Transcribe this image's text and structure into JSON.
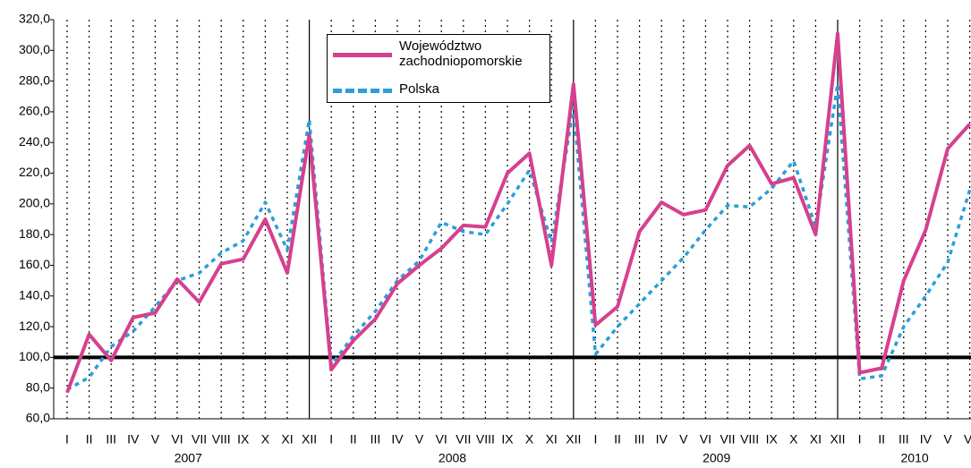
{
  "chart_data": {
    "type": "line",
    "categories": [
      "I",
      "II",
      "III",
      "IV",
      "V",
      "VI",
      "VII",
      "VIII",
      "IX",
      "X",
      "XI",
      "XII",
      "I",
      "II",
      "III",
      "IV",
      "V",
      "VI",
      "VII",
      "VIII",
      "IX",
      "X",
      "XI",
      "XII",
      "I",
      "II",
      "III",
      "IV",
      "V",
      "VI",
      "VII",
      "VIII",
      "IX",
      "X",
      "XI",
      "XII",
      "I",
      "II",
      "III",
      "IV",
      "V",
      "VI"
    ],
    "years": [
      "2007",
      "2008",
      "2009",
      "2010"
    ],
    "series": [
      {
        "name": "Województwo zachodniopomorskie",
        "color": "#d6408e",
        "style": "solid",
        "values": [
          77,
          115,
          98,
          126,
          129,
          151,
          136,
          161,
          164,
          190,
          155,
          245,
          92,
          111,
          125,
          148,
          160,
          171,
          186,
          185,
          220,
          233,
          160,
          278,
          121,
          133,
          182,
          201,
          193,
          196,
          225,
          238,
          213,
          217,
          180,
          311,
          90,
          93,
          150,
          183,
          236,
          252
        ]
      },
      {
        "name": "Polska",
        "color": "#2a9fd8",
        "style": "dotted",
        "values": [
          79,
          87,
          107,
          117,
          133,
          150,
          155,
          168,
          176,
          201,
          170,
          255,
          95,
          114,
          130,
          150,
          163,
          188,
          182,
          180,
          200,
          222,
          175,
          263,
          102,
          120,
          135,
          150,
          165,
          183,
          199,
          198,
          210,
          228,
          185,
          278,
          86,
          88,
          120,
          140,
          162,
          209
        ]
      }
    ],
    "reference_line": 100,
    "ylim": [
      60,
      320
    ],
    "yticks": [
      {
        "value": 60,
        "label": "60,0"
      },
      {
        "value": 80,
        "label": "80,0"
      },
      {
        "value": 100,
        "label": "100,0"
      },
      {
        "value": 120,
        "label": "120,0"
      },
      {
        "value": 140,
        "label": "140,0"
      },
      {
        "value": 160,
        "label": "160,0"
      },
      {
        "value": 180,
        "label": "180,0"
      },
      {
        "value": 200,
        "label": "200,0"
      },
      {
        "value": 220,
        "label": "220,0"
      },
      {
        "value": 240,
        "label": "240,0"
      },
      {
        "value": 260,
        "label": "260,0"
      },
      {
        "value": 280,
        "label": "280,0"
      },
      {
        "value": 300,
        "label": "300,0"
      },
      {
        "value": 320,
        "label": "320,0"
      }
    ],
    "grid": true
  }
}
